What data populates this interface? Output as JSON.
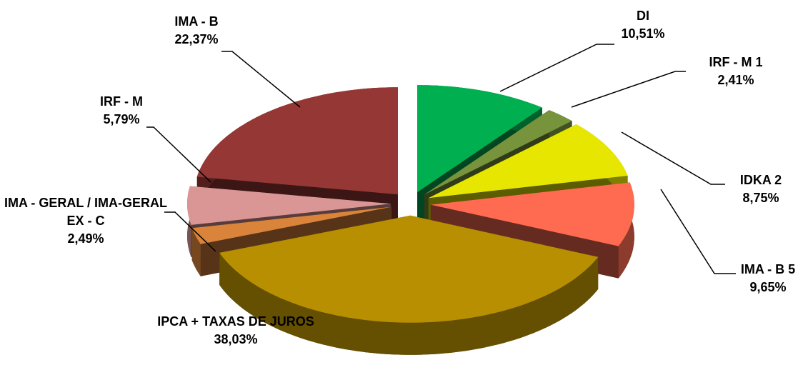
{
  "chart_data": {
    "type": "pie3d",
    "categories": [
      "DI",
      "IRF - M 1",
      "IDKA 2",
      "IMA - B 5",
      "IPCA + TAXAS DE JUROS",
      "IMA - GERAL / IMA-GERAL EX - C",
      "IRF - M",
      "IMA - B"
    ],
    "values": [
      10.51,
      2.41,
      8.75,
      9.65,
      38.03,
      2.49,
      5.79,
      22.37
    ],
    "value_labels": [
      "10,51%",
      "2,41%",
      "8,75%",
      "9,65%",
      "38,03%",
      "2,49%",
      "5,79%",
      "22,37%"
    ],
    "colors": [
      "#00b050",
      "#77933c",
      "#e6e600",
      "#ff6b50",
      "#b88f00",
      "#d9833b",
      "#d99694",
      "#953735"
    ]
  }
}
